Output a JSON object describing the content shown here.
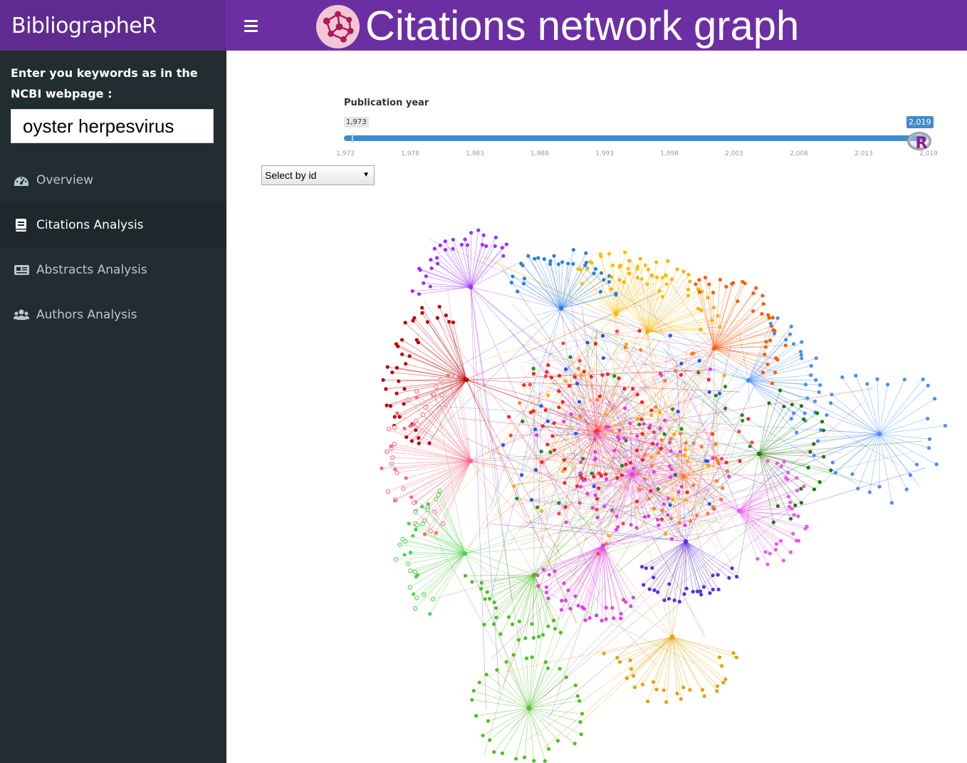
{
  "header": {
    "brand": "BibliographeR",
    "title": "Citations network graph"
  },
  "sidebar": {
    "keywords_label": "Enter you keywords as in the NCBI webpage :",
    "keywords_value": "oyster herpesvirus",
    "items": [
      {
        "label": "Overview",
        "icon": "dashboard-icon",
        "active": false
      },
      {
        "label": "Citations Analysis",
        "icon": "book-icon",
        "active": true
      },
      {
        "label": "Abstracts Analysis",
        "icon": "newspaper-icon",
        "active": false
      },
      {
        "label": "Authors Analysis",
        "icon": "users-icon",
        "active": false
      }
    ]
  },
  "slider": {
    "label": "Publication year",
    "min": 1973,
    "max": 2019,
    "from": 1973,
    "to": 2019,
    "from_label": "1,973",
    "to_label": "2,019",
    "ticks": [
      "1,973",
      "1,978",
      "1,983",
      "1,988",
      "1,993",
      "1,998",
      "2,003",
      "2,008",
      "2,013",
      "2,019"
    ]
  },
  "select": {
    "selected": "Select by id"
  },
  "colors": {
    "header": "#6b2fa3",
    "sidebar": "#222d32",
    "slider": "#428bca"
  },
  "network": {
    "clusters": [
      {
        "color": "#9b30ff",
        "leaves": 30
      },
      {
        "color": "#2a7fe0",
        "leaves": 32
      },
      {
        "color": "#f5c000",
        "leaves": 24
      },
      {
        "color": "#ffb000",
        "leaves": 32
      },
      {
        "color": "#ff5a00",
        "leaves": 36
      },
      {
        "color": "#c00000",
        "leaves": 40
      },
      {
        "color": "#ff6680",
        "leaves": 45
      },
      {
        "color": "#4a8cff",
        "leaves": 26
      },
      {
        "color": "#4a8cff",
        "leaves": 30
      },
      {
        "color": "#1e7a00",
        "leaves": 22
      },
      {
        "color": "#ee55ee",
        "leaves": 30
      },
      {
        "color": "#4fd14f",
        "leaves": 30
      },
      {
        "color": "#4fbf20",
        "leaves": 26
      },
      {
        "color": "#e040e0",
        "leaves": 32
      },
      {
        "color": "#5a2ee0",
        "leaves": 28
      },
      {
        "color": "#e8a000",
        "leaves": 28
      },
      {
        "color": "#4fbf20",
        "leaves": 32
      },
      {
        "color": "#ff2020",
        "leaves": 40
      },
      {
        "color": "#e040e0",
        "leaves": 40
      },
      {
        "color": "#ff7a30",
        "leaves": 28
      }
    ]
  }
}
